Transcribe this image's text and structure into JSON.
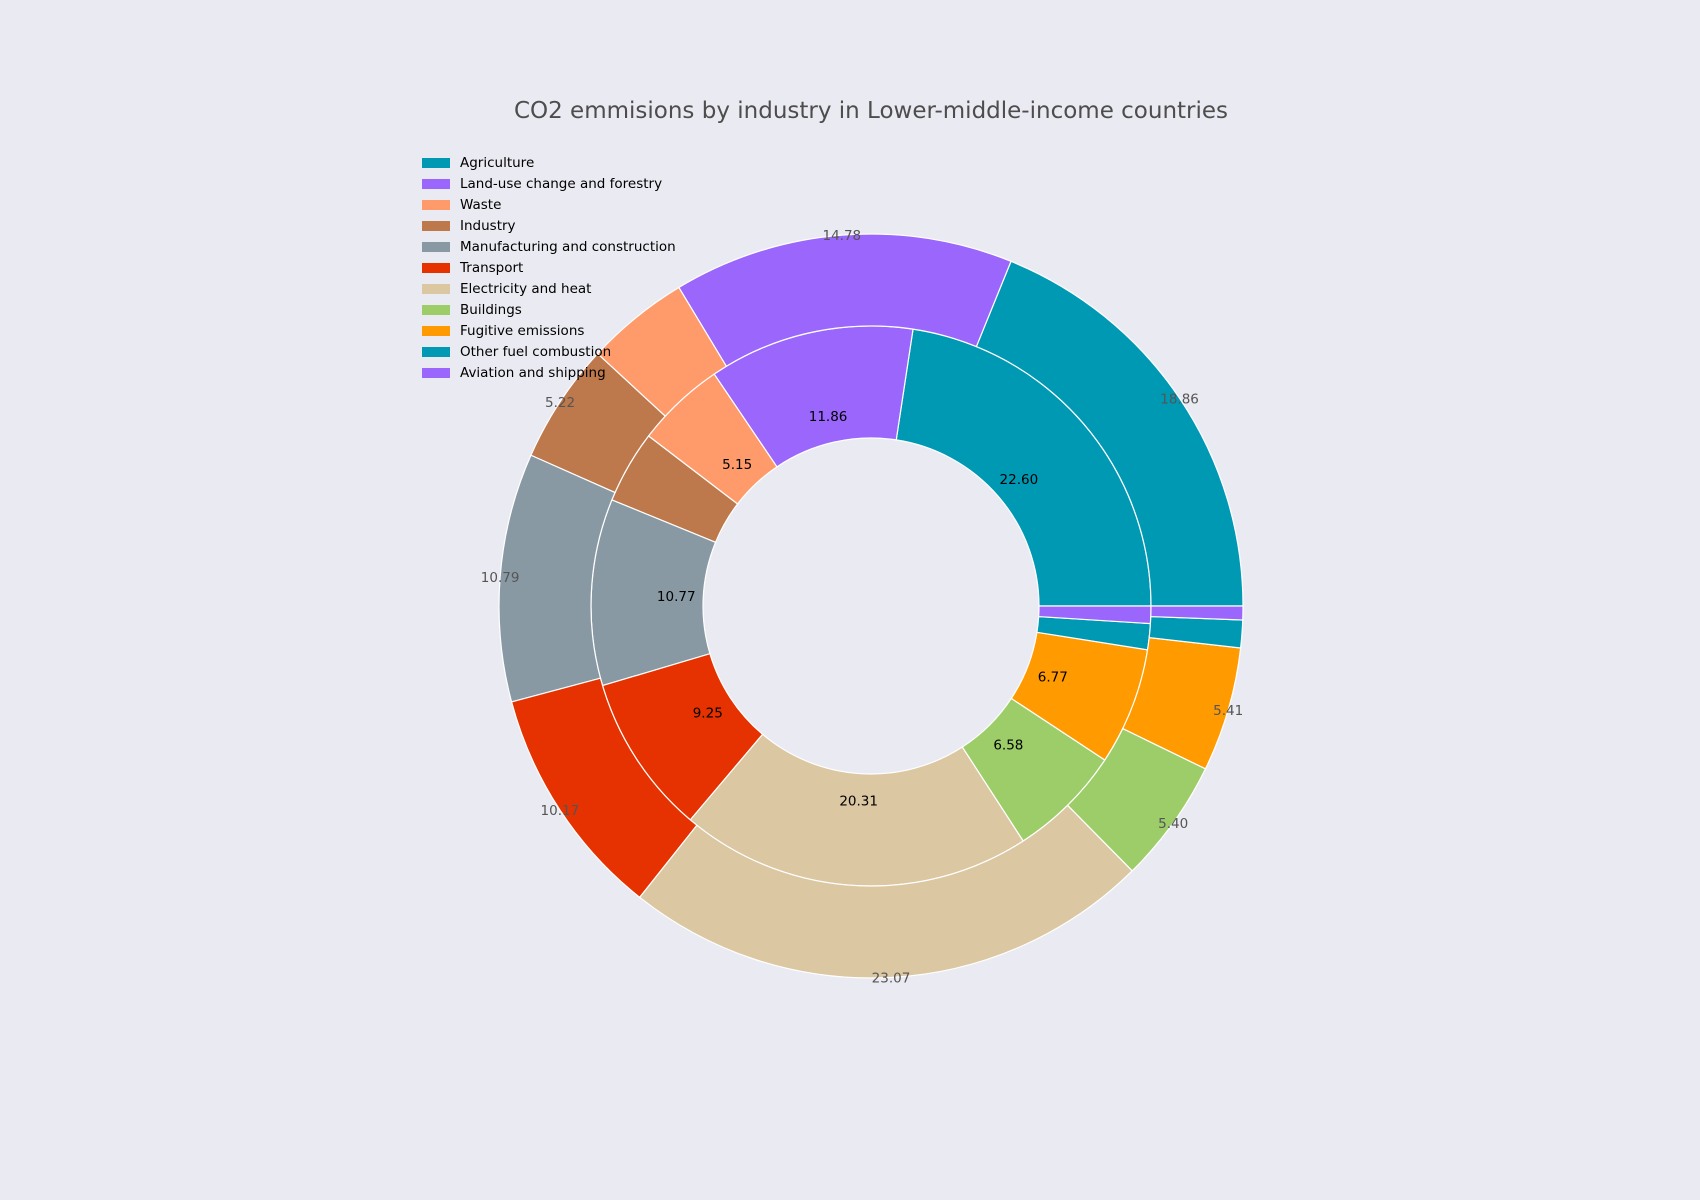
{
  "chart_data": {
    "type": "pie",
    "title": "CO2 emmisions by industry in Lower-middle-income countries",
    "categories": [
      "Agriculture",
      "Land-use change and forestry",
      "Waste",
      "Industry",
      "Manufacturing and construction",
      "Transport",
      "Electricity and heat",
      "Buildings",
      "Fugitive emissions",
      "Other fuel combustion",
      "Aviation and shipping"
    ],
    "colors": [
      "#0099b4",
      "#9b66fc",
      "#ff9b6a",
      "#bd784c",
      "#8899a4",
      "#e53200",
      "#dbc7a1",
      "#9ccd69",
      "#ff9a00",
      "#0099b4",
      "#9b66fc"
    ],
    "series": [
      {
        "ring": "inner",
        "values": [
          22.6,
          11.86,
          5.15,
          4.2,
          10.77,
          9.25,
          20.31,
          6.58,
          6.77,
          1.5,
          1.0
        ],
        "labels": [
          "22.60",
          "11.86",
          "5.15",
          "",
          "10.77",
          "9.25",
          "20.31",
          "6.58",
          "6.77",
          "",
          ""
        ]
      },
      {
        "ring": "outer",
        "values": [
          18.86,
          14.78,
          4.5,
          5.22,
          10.79,
          10.17,
          23.07,
          5.4,
          5.41,
          1.2,
          0.6
        ],
        "labels": [
          "18.86",
          "14.78",
          "",
          "5.22",
          "10.79",
          "10.17",
          "23.07",
          "5.40",
          "5.41",
          "",
          ""
        ]
      }
    ],
    "legend_position": "top-left",
    "start_angle": 0,
    "direction": "counterclockwise"
  }
}
